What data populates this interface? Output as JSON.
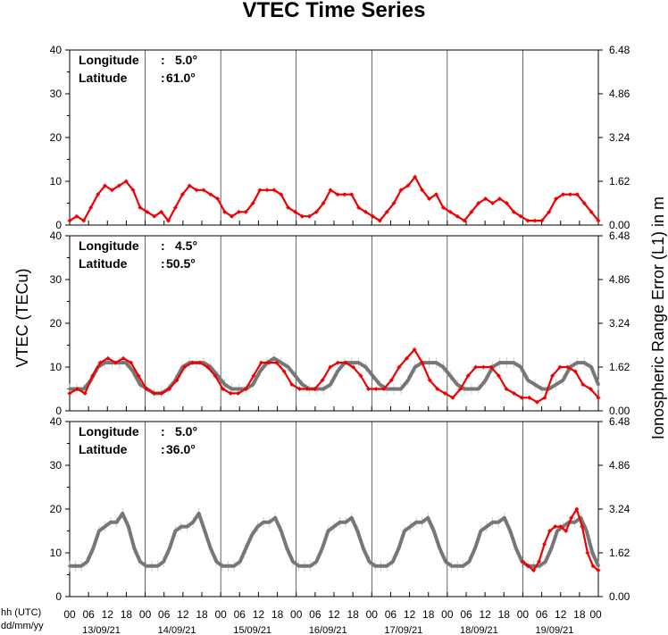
{
  "chart_data": {
    "type": "line",
    "title": "VTEC Time Series",
    "ylabel": "VTEC (TECu)",
    "ylabel_right": "Ionospheric Range Error (L1) in m",
    "x_caption_hours": "hh (UTC)",
    "x_caption_dates": "dd/mm/yy",
    "days": [
      "13/09/21",
      "14/09/21",
      "15/09/21",
      "16/09/21",
      "17/09/21",
      "18/09/21",
      "19/09/21"
    ],
    "hour_ticks": [
      "00",
      "06",
      "12",
      "18"
    ],
    "hour_tick_final": "00",
    "ylim": [
      0,
      40
    ],
    "yticks_left": [
      "0",
      "10",
      "20",
      "30",
      "40"
    ],
    "yticks_right": [
      "0.00",
      "1.62",
      "3.24",
      "4.86",
      "6.48"
    ],
    "panels": [
      {
        "longitude_label": "Longitude",
        "longitude_value": "5.0°",
        "latitude_label": "Latitude",
        "latitude_value": "61.0°",
        "series": [
          {
            "color": "#ee0000",
            "kind": "observed",
            "values": [
              1,
              2,
              1,
              4,
              7,
              9,
              8,
              9,
              10,
              8,
              4,
              3,
              2,
              3,
              1,
              4,
              7,
              9,
              8,
              8,
              7,
              6,
              3,
              2,
              3,
              3,
              5,
              8,
              8,
              8,
              7,
              4,
              3,
              2,
              2,
              3,
              5,
              8,
              7,
              7,
              7,
              4,
              3,
              2,
              1,
              3,
              5,
              8,
              9,
              11,
              8,
              6,
              7,
              4,
              3,
              2,
              1,
              3,
              5,
              6,
              5,
              6,
              5,
              3,
              2,
              1,
              1,
              1,
              3,
              6,
              7,
              7,
              7,
              5,
              3,
              1
            ]
          }
        ]
      },
      {
        "longitude_label": "Longitude",
        "longitude_value": "4.5°",
        "latitude_label": "Latitude",
        "latitude_value": "50.5°",
        "series": [
          {
            "color": "#777777",
            "kind": "reference",
            "values": [
              5,
              5,
              5,
              7,
              10,
              11,
              11,
              11,
              11,
              9,
              6,
              5,
              4,
              4,
              5,
              7,
              10,
              11,
              11,
              11,
              10,
              8,
              6,
              5,
              5,
              5,
              6,
              9,
              11,
              12,
              11,
              10,
              8,
              6,
              5,
              5,
              5,
              6,
              9,
              11,
              11,
              11,
              10,
              8,
              6,
              5,
              5,
              5,
              7,
              10,
              11,
              11,
              11,
              10,
              8,
              6,
              5,
              5,
              5,
              7,
              10,
              11,
              11,
              11,
              10,
              7,
              6,
              5,
              5,
              6,
              7,
              10,
              11,
              11,
              10,
              6
            ]
          },
          {
            "color": "#ee0000",
            "kind": "observed",
            "values": [
              4,
              5,
              4,
              8,
              11,
              12,
              11,
              12,
              11,
              8,
              5,
              4,
              4,
              5,
              7,
              10,
              11,
              11,
              10,
              8,
              5,
              4,
              4,
              5,
              8,
              11,
              11,
              11,
              9,
              6,
              5,
              5,
              5,
              7,
              10,
              11,
              11,
              10,
              8,
              5,
              5,
              5,
              7,
              10,
              12,
              14,
              11,
              7,
              5,
              4,
              3,
              5,
              8,
              10,
              10,
              10,
              8,
              5,
              4,
              3,
              3,
              2,
              3,
              8,
              10,
              10,
              9,
              6,
              5,
              3
            ]
          }
        ]
      },
      {
        "longitude_label": "Longitude",
        "longitude_value": "5.0°",
        "latitude_label": "Latitude",
        "latitude_value": "36.0°",
        "series": [
          {
            "color": "#777777",
            "kind": "reference",
            "values": [
              7,
              7,
              7,
              8,
              11,
              15,
              16,
              17,
              17,
              19,
              16,
              11,
              8,
              7,
              7,
              7,
              8,
              11,
              15,
              16,
              16,
              17,
              19,
              15,
              11,
              8,
              7,
              7,
              7,
              8,
              11,
              14,
              16,
              17,
              17,
              18,
              15,
              11,
              8,
              7,
              7,
              7,
              8,
              11,
              15,
              16,
              17,
              17,
              18,
              15,
              11,
              8,
              7,
              7,
              7,
              8,
              11,
              15,
              16,
              17,
              17,
              18,
              15,
              11,
              8,
              7,
              7,
              7,
              8,
              11,
              15,
              16,
              17,
              17,
              18,
              15,
              11,
              8,
              7,
              7,
              7,
              8,
              11,
              15,
              16,
              17,
              17,
              18,
              15,
              10,
              7
            ]
          },
          {
            "color": "#ee0000",
            "kind": "observed",
            "start_day": 6,
            "values": [
              8,
              7,
              6,
              8,
              12,
              15,
              16,
              16,
              15,
              18,
              20,
              16,
              10,
              7,
              6
            ]
          }
        ]
      }
    ]
  }
}
